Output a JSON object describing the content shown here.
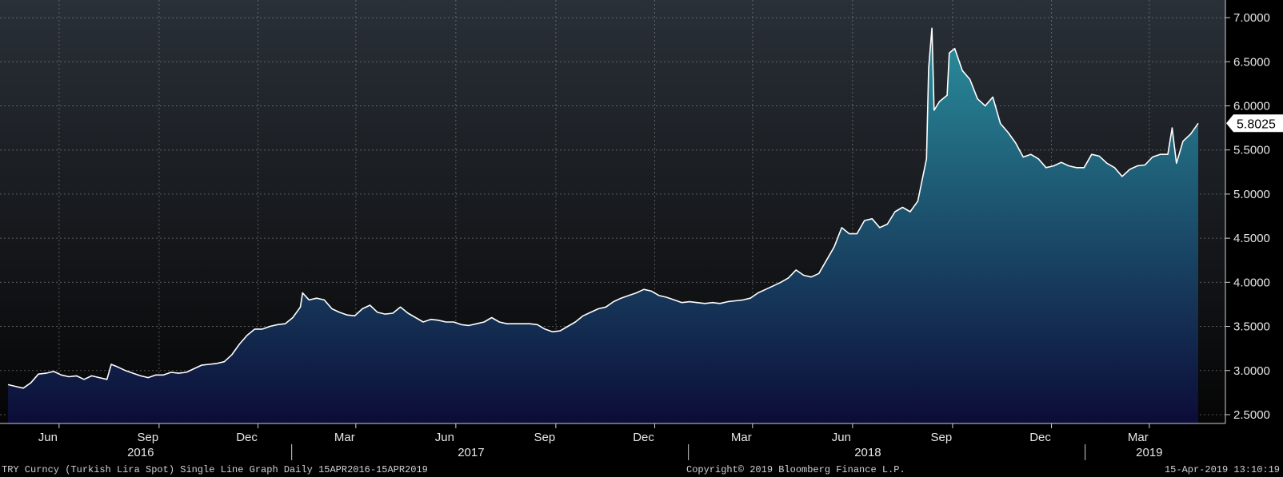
{
  "footer": {
    "left": "TRY Curncy (Turkish Lira Spot) Single Line Graph  Daily 15APR2016-15APR2019",
    "center": "Copyright© 2019 Bloomberg Finance L.P.",
    "right": "15-Apr-2019 13:10:19"
  },
  "chart_data": {
    "type": "area",
    "x_range": [
      "2016-04-15",
      "2019-04-15"
    ],
    "ylim": [
      2.4,
      7.2
    ],
    "y_ticks": [
      "2.5000",
      "3.0000",
      "3.5000",
      "4.0000",
      "4.5000",
      "5.0000",
      "5.5000",
      "6.0000",
      "6.5000",
      "7.0000"
    ],
    "month_ticks": [
      {
        "label": "Jun",
        "date": "2016-06-01"
      },
      {
        "label": "Sep",
        "date": "2016-09-01"
      },
      {
        "label": "Dec",
        "date": "2016-12-01"
      },
      {
        "label": "Mar",
        "date": "2017-03-01"
      },
      {
        "label": "Jun",
        "date": "2017-06-01"
      },
      {
        "label": "Sep",
        "date": "2017-09-01"
      },
      {
        "label": "Dec",
        "date": "2017-12-01"
      },
      {
        "label": "Mar",
        "date": "2018-03-01"
      },
      {
        "label": "Jun",
        "date": "2018-06-01"
      },
      {
        "label": "Sep",
        "date": "2018-09-01"
      },
      {
        "label": "Dec",
        "date": "2018-12-01"
      },
      {
        "label": "Mar",
        "date": "2019-03-01"
      }
    ],
    "year_labels": [
      {
        "label": "2016",
        "date": "2016-08-15"
      },
      {
        "label": "2017",
        "date": "2017-06-15"
      },
      {
        "label": "2018",
        "date": "2018-06-15"
      },
      {
        "label": "2019",
        "date": "2019-03-01"
      }
    ],
    "year_separators": [
      "2017-01-01",
      "2018-01-01",
      "2019-01-01"
    ],
    "last_value_label": "5.8025",
    "grid": true,
    "colors": {
      "line": "#ffffff",
      "fill_top": "#2a8e9c",
      "fill_bottom": "#0c0c38",
      "grid": "#8a8a8a",
      "bg_top": "#2a3038",
      "bg_bottom": "#050505"
    },
    "series": [
      {
        "points": [
          [
            "2016-04-15",
            2.84
          ],
          [
            "2016-04-22",
            2.82
          ],
          [
            "2016-04-29",
            2.8
          ],
          [
            "2016-05-06",
            2.86
          ],
          [
            "2016-05-13",
            2.96
          ],
          [
            "2016-05-20",
            2.97
          ],
          [
            "2016-05-27",
            2.99
          ],
          [
            "2016-06-03",
            2.95
          ],
          [
            "2016-06-10",
            2.93
          ],
          [
            "2016-06-17",
            2.94
          ],
          [
            "2016-06-24",
            2.9
          ],
          [
            "2016-07-01",
            2.94
          ],
          [
            "2016-07-08",
            2.92
          ],
          [
            "2016-07-15",
            2.9
          ],
          [
            "2016-07-19",
            3.07
          ],
          [
            "2016-07-25",
            3.04
          ],
          [
            "2016-08-01",
            3.0
          ],
          [
            "2016-08-08",
            2.97
          ],
          [
            "2016-08-15",
            2.94
          ],
          [
            "2016-08-22",
            2.92
          ],
          [
            "2016-08-29",
            2.95
          ],
          [
            "2016-09-05",
            2.95
          ],
          [
            "2016-09-12",
            2.98
          ],
          [
            "2016-09-19",
            2.97
          ],
          [
            "2016-09-26",
            2.98
          ],
          [
            "2016-10-03",
            3.02
          ],
          [
            "2016-10-10",
            3.06
          ],
          [
            "2016-10-17",
            3.07
          ],
          [
            "2016-10-24",
            3.08
          ],
          [
            "2016-10-31",
            3.1
          ],
          [
            "2016-11-07",
            3.18
          ],
          [
            "2016-11-14",
            3.3
          ],
          [
            "2016-11-21",
            3.4
          ],
          [
            "2016-11-28",
            3.47
          ],
          [
            "2016-12-05",
            3.47
          ],
          [
            "2016-12-12",
            3.5
          ],
          [
            "2016-12-19",
            3.52
          ],
          [
            "2016-12-26",
            3.53
          ],
          [
            "2017-01-02",
            3.6
          ],
          [
            "2017-01-09",
            3.72
          ],
          [
            "2017-01-11",
            3.88
          ],
          [
            "2017-01-17",
            3.8
          ],
          [
            "2017-01-24",
            3.82
          ],
          [
            "2017-01-31",
            3.8
          ],
          [
            "2017-02-07",
            3.7
          ],
          [
            "2017-02-14",
            3.66
          ],
          [
            "2017-02-21",
            3.63
          ],
          [
            "2017-02-28",
            3.62
          ],
          [
            "2017-03-07",
            3.7
          ],
          [
            "2017-03-14",
            3.74
          ],
          [
            "2017-03-21",
            3.66
          ],
          [
            "2017-03-28",
            3.64
          ],
          [
            "2017-04-04",
            3.65
          ],
          [
            "2017-04-11",
            3.72
          ],
          [
            "2017-04-18",
            3.65
          ],
          [
            "2017-04-25",
            3.6
          ],
          [
            "2017-05-02",
            3.55
          ],
          [
            "2017-05-09",
            3.58
          ],
          [
            "2017-05-16",
            3.57
          ],
          [
            "2017-05-23",
            3.55
          ],
          [
            "2017-05-30",
            3.55
          ],
          [
            "2017-06-06",
            3.52
          ],
          [
            "2017-06-13",
            3.51
          ],
          [
            "2017-06-20",
            3.53
          ],
          [
            "2017-06-27",
            3.55
          ],
          [
            "2017-07-04",
            3.6
          ],
          [
            "2017-07-11",
            3.55
          ],
          [
            "2017-07-18",
            3.53
          ],
          [
            "2017-07-25",
            3.53
          ],
          [
            "2017-08-01",
            3.53
          ],
          [
            "2017-08-08",
            3.53
          ],
          [
            "2017-08-15",
            3.52
          ],
          [
            "2017-08-22",
            3.47
          ],
          [
            "2017-08-29",
            3.44
          ],
          [
            "2017-09-05",
            3.45
          ],
          [
            "2017-09-12",
            3.5
          ],
          [
            "2017-09-19",
            3.55
          ],
          [
            "2017-09-26",
            3.62
          ],
          [
            "2017-10-03",
            3.66
          ],
          [
            "2017-10-10",
            3.7
          ],
          [
            "2017-10-17",
            3.72
          ],
          [
            "2017-10-24",
            3.78
          ],
          [
            "2017-10-31",
            3.82
          ],
          [
            "2017-11-07",
            3.85
          ],
          [
            "2017-11-14",
            3.88
          ],
          [
            "2017-11-21",
            3.92
          ],
          [
            "2017-11-28",
            3.9
          ],
          [
            "2017-12-05",
            3.85
          ],
          [
            "2017-12-12",
            3.83
          ],
          [
            "2017-12-19",
            3.8
          ],
          [
            "2017-12-26",
            3.77
          ],
          [
            "2018-01-02",
            3.78
          ],
          [
            "2018-01-09",
            3.77
          ],
          [
            "2018-01-16",
            3.76
          ],
          [
            "2018-01-23",
            3.77
          ],
          [
            "2018-01-30",
            3.76
          ],
          [
            "2018-02-06",
            3.78
          ],
          [
            "2018-02-13",
            3.79
          ],
          [
            "2018-02-20",
            3.8
          ],
          [
            "2018-02-27",
            3.82
          ],
          [
            "2018-03-06",
            3.88
          ],
          [
            "2018-03-13",
            3.92
          ],
          [
            "2018-03-20",
            3.96
          ],
          [
            "2018-03-27",
            4.0
          ],
          [
            "2018-04-03",
            4.05
          ],
          [
            "2018-04-10",
            4.14
          ],
          [
            "2018-04-17",
            4.08
          ],
          [
            "2018-04-24",
            4.06
          ],
          [
            "2018-05-01",
            4.1
          ],
          [
            "2018-05-08",
            4.25
          ],
          [
            "2018-05-15",
            4.4
          ],
          [
            "2018-05-22",
            4.62
          ],
          [
            "2018-05-29",
            4.55
          ],
          [
            "2018-06-05",
            4.55
          ],
          [
            "2018-06-12",
            4.7
          ],
          [
            "2018-06-19",
            4.72
          ],
          [
            "2018-06-26",
            4.62
          ],
          [
            "2018-07-03",
            4.66
          ],
          [
            "2018-07-10",
            4.8
          ],
          [
            "2018-07-17",
            4.85
          ],
          [
            "2018-07-24",
            4.8
          ],
          [
            "2018-07-31",
            4.92
          ],
          [
            "2018-08-03",
            5.1
          ],
          [
            "2018-08-08",
            5.4
          ],
          [
            "2018-08-10",
            6.43
          ],
          [
            "2018-08-13",
            6.88
          ],
          [
            "2018-08-15",
            5.95
          ],
          [
            "2018-08-20",
            6.05
          ],
          [
            "2018-08-27",
            6.12
          ],
          [
            "2018-08-29",
            6.6
          ],
          [
            "2018-09-03",
            6.65
          ],
          [
            "2018-09-10",
            6.4
          ],
          [
            "2018-09-17",
            6.3
          ],
          [
            "2018-09-24",
            6.08
          ],
          [
            "2018-10-01",
            6.0
          ],
          [
            "2018-10-08",
            6.1
          ],
          [
            "2018-10-15",
            5.8
          ],
          [
            "2018-10-22",
            5.7
          ],
          [
            "2018-10-29",
            5.58
          ],
          [
            "2018-11-05",
            5.42
          ],
          [
            "2018-11-12",
            5.45
          ],
          [
            "2018-11-19",
            5.4
          ],
          [
            "2018-11-26",
            5.3
          ],
          [
            "2018-12-03",
            5.32
          ],
          [
            "2018-12-10",
            5.36
          ],
          [
            "2018-12-17",
            5.32
          ],
          [
            "2018-12-24",
            5.3
          ],
          [
            "2018-12-31",
            5.3
          ],
          [
            "2019-01-07",
            5.45
          ],
          [
            "2019-01-14",
            5.43
          ],
          [
            "2019-01-21",
            5.35
          ],
          [
            "2019-01-28",
            5.3
          ],
          [
            "2019-02-04",
            5.2
          ],
          [
            "2019-02-11",
            5.28
          ],
          [
            "2019-02-18",
            5.32
          ],
          [
            "2019-02-25",
            5.33
          ],
          [
            "2019-03-04",
            5.42
          ],
          [
            "2019-03-11",
            5.45
          ],
          [
            "2019-03-18",
            5.45
          ],
          [
            "2019-03-22",
            5.75
          ],
          [
            "2019-03-26",
            5.35
          ],
          [
            "2019-04-01",
            5.6
          ],
          [
            "2019-04-08",
            5.68
          ],
          [
            "2019-04-15",
            5.8025
          ]
        ]
      }
    ]
  }
}
